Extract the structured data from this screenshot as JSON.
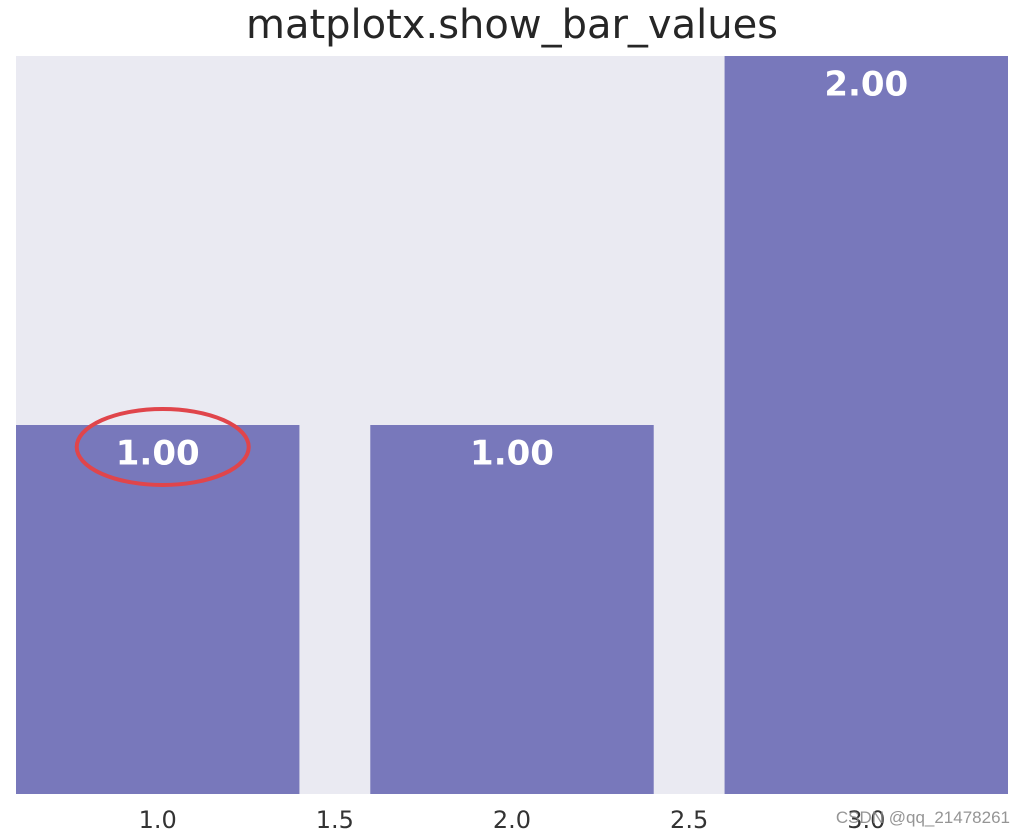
{
  "chart_data": {
    "type": "bar",
    "title": "matplotx.show_bar_values",
    "x": [
      1.0,
      2.0,
      3.0
    ],
    "values": [
      1.0,
      1.0,
      2.0
    ],
    "value_labels": [
      "1.00",
      "1.00",
      "2.00"
    ],
    "bar_width": 0.8,
    "xlim": [
      0.6,
      3.4
    ],
    "ylim": [
      0,
      2
    ],
    "xticks": [
      1.0,
      1.5,
      2.0,
      2.5,
      3.0
    ],
    "xtick_labels": [
      "1.0",
      "1.5",
      "2.0",
      "2.5",
      "3.0"
    ],
    "grid": false,
    "xlabel": "",
    "ylabel": ""
  },
  "annotation": {
    "shape": "ellipse",
    "target_label_index": 0
  },
  "watermark": "CSDN @qq_21478261",
  "colors": {
    "background": "#eaeaf2",
    "bar": "#7878bb",
    "bar_label": "#ffffff",
    "tick_label": "#333333",
    "title": "#262626",
    "annotation": "#e0454b"
  }
}
